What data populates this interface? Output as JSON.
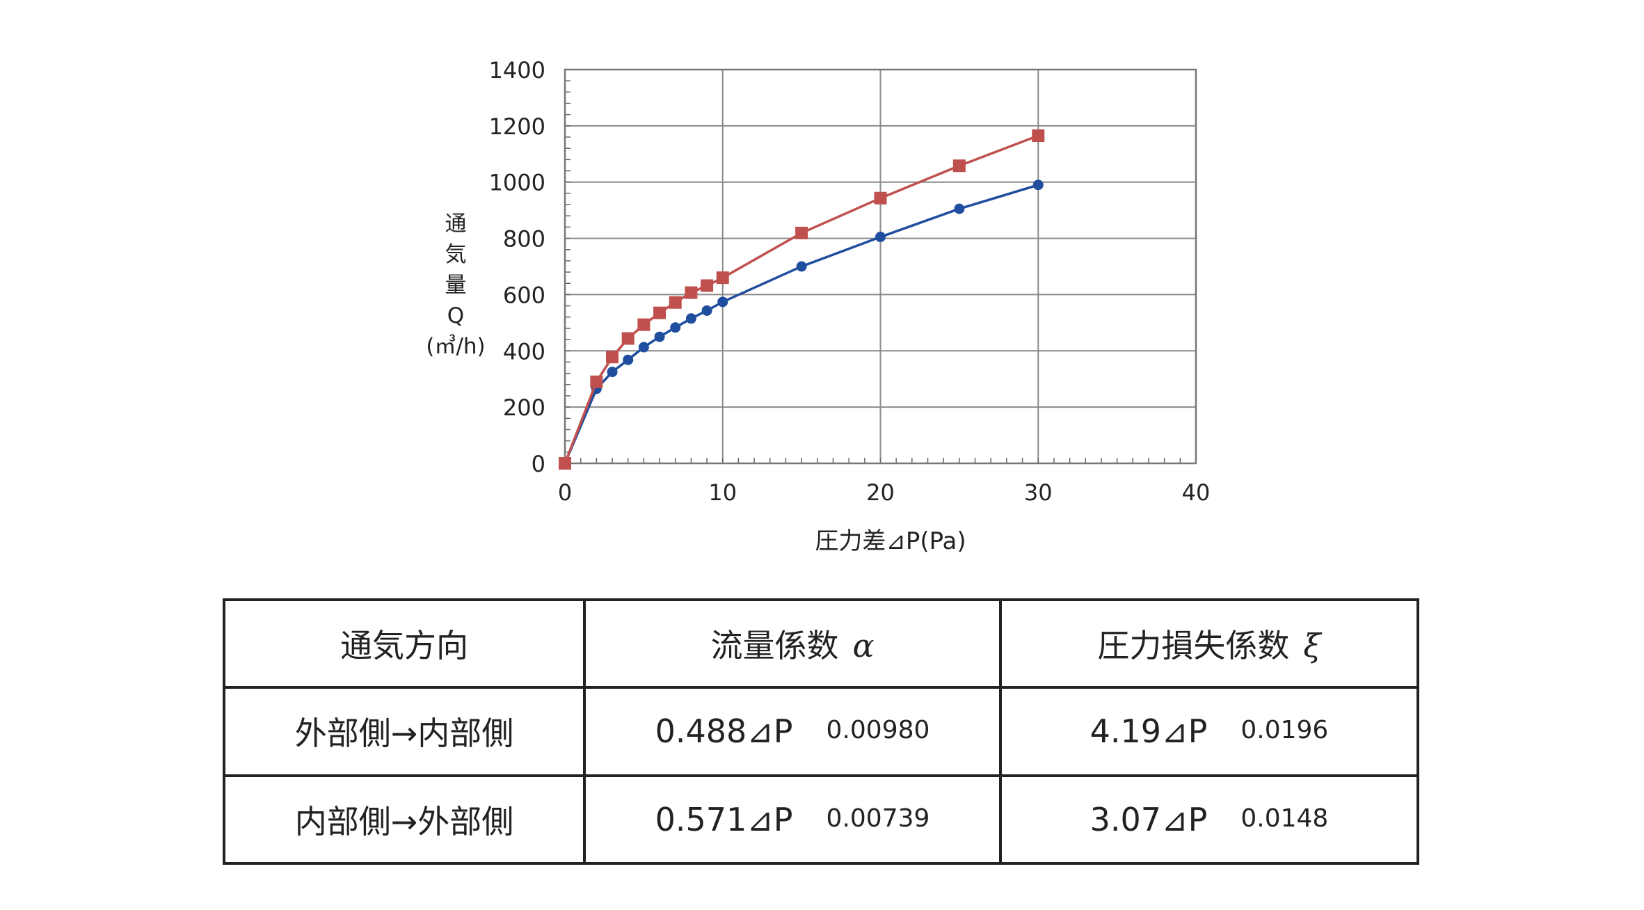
{
  "chart_data": {
    "type": "line",
    "xlabel": "圧力差⊿P(Pa)",
    "ylabel_chars": [
      "通",
      "気",
      "量",
      "Q",
      "(㎥/h)"
    ],
    "xlim": [
      0,
      40
    ],
    "ylim": [
      0,
      1400
    ],
    "xticks": [
      "0",
      "10",
      "20",
      "30",
      "40"
    ],
    "yticks": [
      "0",
      "200",
      "400",
      "600",
      "800",
      "1000",
      "1200",
      "1400"
    ],
    "grid": true,
    "series": [
      {
        "color": "#c0504d",
        "marker": "square",
        "x": [
          0,
          2,
          3,
          4,
          5,
          6,
          7,
          8,
          9,
          10,
          15,
          20,
          25,
          30
        ],
        "y": [
          0,
          290,
          378,
          444,
          493,
          535,
          572,
          607,
          632,
          660,
          819,
          943,
          1058,
          1165
        ]
      },
      {
        "color": "#1f4e9e",
        "marker": "circle",
        "x": [
          0,
          2,
          3,
          4,
          5,
          6,
          7,
          8,
          9,
          10,
          15,
          20,
          25,
          30
        ],
        "y": [
          0,
          265,
          325,
          368,
          413,
          450,
          483,
          515,
          543,
          574,
          700,
          805,
          905,
          990
        ]
      }
    ]
  },
  "table": {
    "headers": [
      "通気方向",
      "流量係数",
      "α",
      "圧力損失係数",
      "ξ"
    ],
    "rows": [
      {
        "direction": "外部側→内部側",
        "alpha_base": "0.488⊿P",
        "alpha_exp": "0.00980",
        "xi_base": "4.19⊿P",
        "xi_exp": "0.0196"
      },
      {
        "direction": "内部側→外部側",
        "alpha_base": "0.571⊿P",
        "alpha_exp": "0.00739",
        "xi_base": "3.07⊿P",
        "xi_exp": "0.0148"
      }
    ]
  }
}
